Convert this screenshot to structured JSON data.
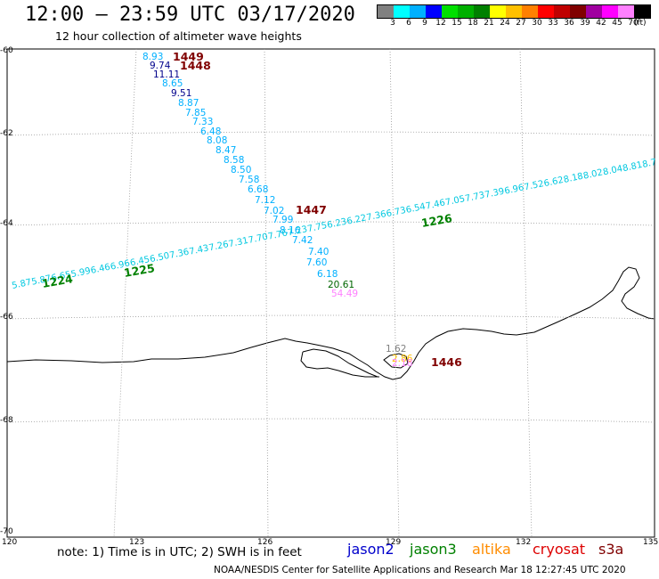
{
  "title": "12:00 – 23:59 UTC 03/17/2020",
  "subtitle": "12 hour collection of altimeter wave heights",
  "colorbar": {
    "units": "(ft)",
    "colors": [
      "#808080",
      "#00ffff",
      "#00b0ff",
      "#0000ff",
      "#00e000",
      "#00b000",
      "#008000",
      "#ffff00",
      "#ffc000",
      "#ff8000",
      "#ff0000",
      "#c00000",
      "#800000",
      "#a000a0",
      "#ff00ff",
      "#ff80ff",
      "#000000"
    ],
    "labels": [
      "3",
      "6",
      "9",
      "12",
      "15",
      "18",
      "21",
      "24",
      "27",
      "30",
      "33",
      "36",
      "39",
      "42",
      "45",
      "70"
    ]
  },
  "axes": {
    "lon_ticks": [
      "120",
      "123",
      "126",
      "129",
      "132",
      "135"
    ],
    "lat_ticks": [
      "-60",
      "-62",
      "-64",
      "-66",
      "-68",
      "-70"
    ]
  },
  "note": "note:  1) Time is in UTC;  2) SWH is in feet",
  "legend": [
    {
      "label": "jason2",
      "color": "#0000cc"
    },
    {
      "label": "jason3",
      "color": "#008000"
    },
    {
      "label": "altika",
      "color": "#ff8c00"
    },
    {
      "label": "cryosat",
      "color": "#dd0000"
    },
    {
      "label": "s3a",
      "color": "#800000"
    }
  ],
  "credit": "NOAA/NESDIS Center for Satellite Applications and Research    Mar 18 12:27:45 UTC 2020",
  "time_labels": [
    {
      "text": "1449",
      "color": "#800000"
    },
    {
      "text": "1448",
      "color": "#800000"
    },
    {
      "text": "1447",
      "color": "#800000"
    },
    {
      "text": "1446",
      "color": "#800000"
    },
    {
      "text": "1224",
      "color": "#008000"
    },
    {
      "text": "1225",
      "color": "#008000"
    },
    {
      "text": "1226",
      "color": "#008000"
    }
  ],
  "track_diagonal": [
    {
      "v": "8.93",
      "c": "#00b0ff"
    },
    {
      "v": "9.74",
      "c": "#00008b"
    },
    {
      "v": "11.11",
      "c": "#00008b"
    },
    {
      "v": "8.65",
      "c": "#00b0ff"
    },
    {
      "v": "9.51",
      "c": "#00008b"
    },
    {
      "v": "8.87",
      "c": "#00b0ff"
    },
    {
      "v": "7.85",
      "c": "#00b0ff"
    },
    {
      "v": "7.33",
      "c": "#00b0ff"
    },
    {
      "v": "6.48",
      "c": "#00b0ff"
    },
    {
      "v": "8.08",
      "c": "#00b0ff"
    },
    {
      "v": "8.47",
      "c": "#00b0ff"
    },
    {
      "v": "8.58",
      "c": "#00b0ff"
    },
    {
      "v": "8.50",
      "c": "#00b0ff"
    },
    {
      "v": "7.58",
      "c": "#00b0ff"
    },
    {
      "v": "6.68",
      "c": "#00b0ff"
    },
    {
      "v": "7.12",
      "c": "#00b0ff"
    },
    {
      "v": "7.02",
      "c": "#00b0ff"
    },
    {
      "v": "7.99",
      "c": "#00b0ff"
    },
    {
      "v": "8.16",
      "c": "#00b0ff"
    },
    {
      "v": "7.42",
      "c": "#00b0ff"
    },
    {
      "v": "7.40",
      "c": "#00b0ff"
    },
    {
      "v": "7.60",
      "c": "#00b0ff"
    },
    {
      "v": "6.18",
      "c": "#00b0ff"
    },
    {
      "v": "20.61",
      "c": "#006400"
    },
    {
      "v": "54.49",
      "c": "#ff80ff"
    }
  ],
  "track_crossing": [
    {
      "v": "5.87",
      "c": "#00c8e0"
    },
    {
      "v": "5.87",
      "c": "#00c8e0"
    },
    {
      "v": "6.65",
      "c": "#00c8e0"
    },
    {
      "v": "5.99",
      "c": "#00c8e0"
    },
    {
      "v": "6.46",
      "c": "#00c8e0"
    },
    {
      "v": "6.96",
      "c": "#00c8e0"
    },
    {
      "v": "6.45",
      "c": "#00c8e0"
    },
    {
      "v": "6.50",
      "c": "#00c8e0"
    },
    {
      "v": "7.36",
      "c": "#00c8e0"
    },
    {
      "v": "7.43",
      "c": "#00c8e0"
    },
    {
      "v": "7.26",
      "c": "#00c8e0"
    },
    {
      "v": "7.31",
      "c": "#00c8e0"
    },
    {
      "v": "7.70",
      "c": "#00c8e0"
    },
    {
      "v": "7.76",
      "c": "#00c8e0"
    },
    {
      "v": "7.23",
      "c": "#00c8e0"
    },
    {
      "v": "7.75",
      "c": "#00c8e0"
    },
    {
      "v": "6.23",
      "c": "#00c8e0"
    },
    {
      "v": "6.22",
      "c": "#00c8e0"
    },
    {
      "v": "7.36",
      "c": "#00c8e0"
    },
    {
      "v": "6.73",
      "c": "#00c8e0"
    },
    {
      "v": "6.54",
      "c": "#00c8e0"
    },
    {
      "v": "7.46",
      "c": "#00c8e0"
    },
    {
      "v": "7.05",
      "c": "#00c8e0"
    },
    {
      "v": "7.73",
      "c": "#00c8e0"
    },
    {
      "v": "7.39",
      "c": "#00c8e0"
    },
    {
      "v": "6.96",
      "c": "#00c8e0"
    },
    {
      "v": "7.52",
      "c": "#00c8e0"
    },
    {
      "v": "6.62",
      "c": "#00c8e0"
    },
    {
      "v": "8.18",
      "c": "#00c8e0"
    },
    {
      "v": "8.02",
      "c": "#00c8e0"
    },
    {
      "v": "8.04",
      "c": "#00c8e0"
    },
    {
      "v": "8.81",
      "c": "#00c8e0"
    },
    {
      "v": "8.7",
      "c": "#00c8e0"
    }
  ],
  "coast_values": [
    {
      "v": "1.62",
      "c": "#808080"
    },
    {
      "v": "2.86",
      "c": "#ffc000"
    },
    {
      "v": "2.18",
      "c": "#ff80ff"
    }
  ]
}
